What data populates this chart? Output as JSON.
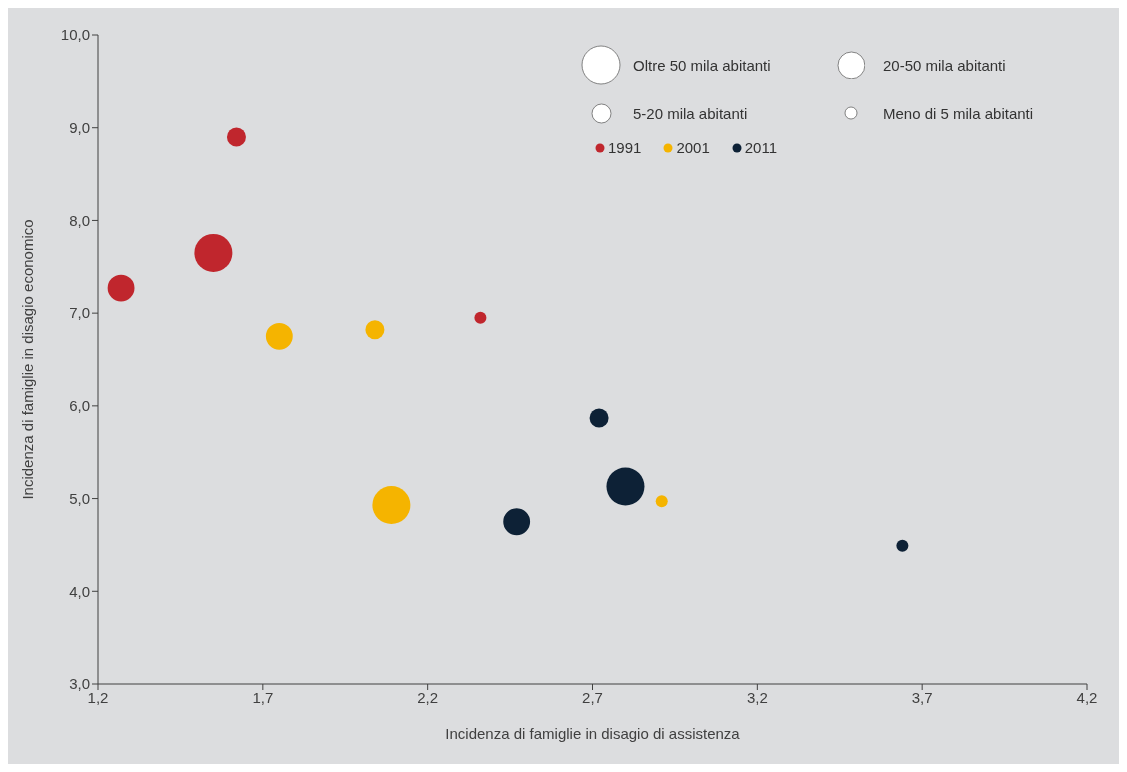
{
  "chart_data": {
    "type": "bubble",
    "xlabel": "Incidenza di famiglie in disagio di assistenza",
    "ylabel": "Incidenza di famiglie in disagio economico",
    "xlim": [
      1.2,
      4.2
    ],
    "xticks": [
      {
        "value": 1.2,
        "label": "1,2"
      },
      {
        "value": 1.7,
        "label": "1,7"
      },
      {
        "value": 2.2,
        "label": "2,2"
      },
      {
        "value": 2.7,
        "label": "2,7"
      },
      {
        "value": 3.2,
        "label": "3,2"
      },
      {
        "value": 3.7,
        "label": "3,7"
      },
      {
        "value": 4.2,
        "label": "4,2"
      }
    ],
    "ylim": [
      3,
      10
    ],
    "yticks": [
      {
        "value": 3,
        "label": "3,0"
      },
      {
        "value": 4,
        "label": "4,0"
      },
      {
        "value": 5,
        "label": "5,0"
      },
      {
        "value": 6,
        "label": "6,0"
      },
      {
        "value": 7,
        "label": "7,0"
      },
      {
        "value": 8,
        "label": "8,0"
      },
      {
        "value": 9,
        "label": "9,0"
      },
      {
        "value": 10,
        "label": "10,0"
      }
    ],
    "grid": false,
    "legend": "top right",
    "size_legend": [
      {
        "value": 1,
        "label": "Oltre 50 mila abitanti"
      },
      {
        "value": 0.5,
        "label": "20-50 mila abitanti"
      },
      {
        "value": 0.25,
        "label": "5-20 mila abitanti"
      },
      {
        "value": 0.1,
        "label": "Meno di 5 mila abitanti"
      }
    ],
    "series": [
      {
        "name": "1991",
        "color": "#c0262d",
        "x": [
          1.27,
          1.55,
          1.62,
          2.36
        ],
        "values": [
          7.27,
          7.65,
          8.9,
          6.95
        ],
        "sizes": [
          0.5,
          1,
          0.25,
          0.1
        ]
      },
      {
        "name": "2001",
        "color": "#f5b400",
        "x": [
          1.75,
          2.04,
          2.09,
          2.91
        ],
        "values": [
          6.75,
          6.82,
          4.93,
          4.97
        ],
        "sizes": [
          0.5,
          0.25,
          1,
          0.1
        ]
      },
      {
        "name": "2011",
        "color": "#0d2136",
        "x": [
          2.72,
          2.47,
          2.8,
          3.64
        ],
        "values": [
          5.87,
          4.75,
          5.13,
          4.49
        ],
        "sizes": [
          0.25,
          0.5,
          1,
          0.1
        ]
      }
    ]
  }
}
